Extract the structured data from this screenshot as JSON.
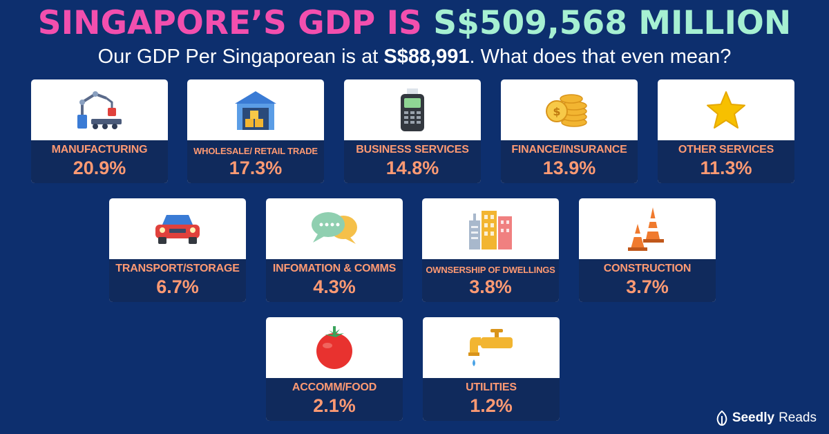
{
  "title": {
    "part1": "SINGAPORE’S GDP IS",
    "part2": "S$509,568 MILLION"
  },
  "subtitle": {
    "prefix": "Our GDP Per Singaporean is at",
    "amount": "S$88,991",
    "suffix": ". What does that even mean?"
  },
  "sectors": [
    {
      "label": "MANUFACTURING",
      "value": "20.9%",
      "icon": "robot-arm-icon"
    },
    {
      "label": "WHOLESALE/ RETAIL TRADE",
      "value": "17.3%",
      "icon": "warehouse-icon"
    },
    {
      "label": "BUSINESS SERVICES",
      "value": "14.8%",
      "icon": "card-terminal-icon"
    },
    {
      "label": "FINANCE/INSURANCE",
      "value": "13.9%",
      "icon": "coins-icon"
    },
    {
      "label": "OTHER SERVICES",
      "value": "11.3%",
      "icon": "star-icon"
    },
    {
      "label": "TRANSPORT/STORAGE",
      "value": "6.7%",
      "icon": "car-icon"
    },
    {
      "label": "INFOMATION & COMMS",
      "value": "4.3%",
      "icon": "chat-bubbles-icon"
    },
    {
      "label": "OWNSERSHIP OF DWELLINGS",
      "value": "3.8%",
      "icon": "buildings-icon"
    },
    {
      "label": "CONSTRUCTION",
      "value": "3.7%",
      "icon": "traffic-cones-icon"
    },
    {
      "label": "ACCOMM/FOOD",
      "value": "2.1%",
      "icon": "tomato-icon"
    },
    {
      "label": "UTILITIES",
      "value": "1.2%",
      "icon": "faucet-icon"
    }
  ],
  "logo": {
    "brand": "Seedly",
    "product": "Reads"
  },
  "colors": {
    "background": "#0d2f6e",
    "band": "#102a5c",
    "accent": "#ff9a73",
    "title_pink": "#f24fae",
    "title_mint": "#a6f0d2"
  }
}
